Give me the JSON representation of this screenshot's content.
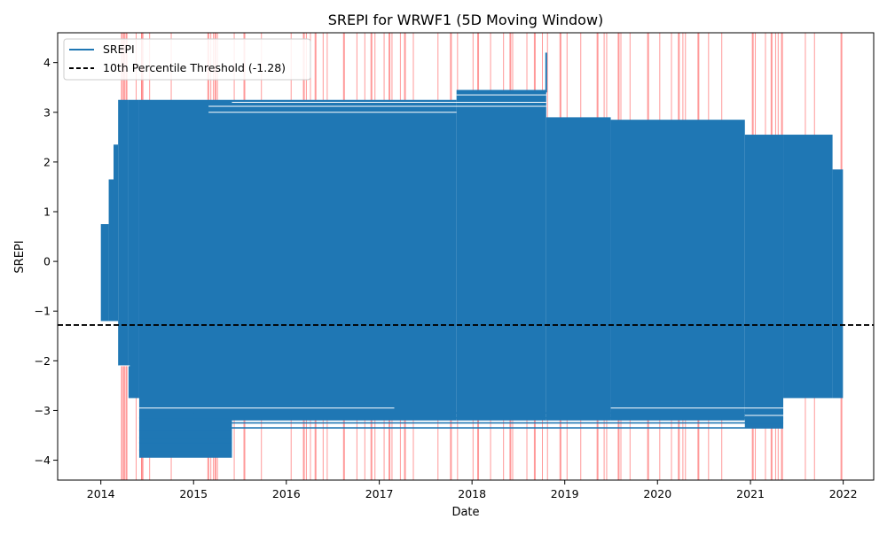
{
  "chart_data": {
    "type": "line",
    "title": "SREPI for WRWF1 (5D Moving Window)",
    "xlabel": "Date",
    "ylabel": "SREPI",
    "xlim": [
      "2013-07-15",
      "2022-05-01"
    ],
    "ylim": [
      -4.4,
      4.6
    ],
    "x_ticks": [
      "2014",
      "2015",
      "2016",
      "2017",
      "2018",
      "2019",
      "2020",
      "2021",
      "2022"
    ],
    "y_ticks": [
      "−4",
      "−3",
      "−2",
      "−1",
      "0",
      "1",
      "2",
      "3",
      "4"
    ],
    "legend": {
      "placement": "upper-left",
      "entries": [
        "SREPI",
        "10th Percentile Threshold (-1.28)"
      ]
    },
    "series": [
      {
        "name": "SREPI",
        "color": "#1f77b4",
        "envelope_approx": [
          {
            "x_start": "2014-01-01",
            "x_end": "2014-02-01",
            "y_min": -1.2,
            "y_max": 0.75
          },
          {
            "x_start": "2014-02-01",
            "x_end": "2014-02-20",
            "y_min": -1.2,
            "y_max": 1.65
          },
          {
            "x_start": "2014-02-20",
            "x_end": "2014-03-10",
            "y_min": -1.2,
            "y_max": 2.35
          },
          {
            "x_start": "2014-03-10",
            "x_end": "2014-04-20",
            "y_min": -2.1,
            "y_max": 3.25
          },
          {
            "x_start": "2014-04-20",
            "x_end": "2014-06-01",
            "y_min": -2.75,
            "y_max": 3.25
          },
          {
            "x_start": "2014-06-01",
            "x_end": "2015-06-01",
            "y_min": -3.95,
            "y_max": 3.25
          },
          {
            "x_start": "2015-06-01",
            "x_end": "2017-11-01",
            "y_min": -3.2,
            "y_max": 3.25
          },
          {
            "x_start": "2017-11-01",
            "x_end": "2018-10-20",
            "y_min": -3.2,
            "y_max": 3.45
          },
          {
            "x_start": "2018-10-20",
            "x_end": "2019-07-01",
            "y_min": -3.2,
            "y_max": 2.9
          },
          {
            "x_start": "2019-07-01",
            "x_end": "2020-12-10",
            "y_min": -3.2,
            "y_max": 2.85
          },
          {
            "x_start": "2020-12-10",
            "x_end": "2021-05-10",
            "y_min": -3.35,
            "y_max": 2.55
          },
          {
            "x_start": "2021-05-10",
            "x_end": "2021-11-20",
            "y_min": -2.75,
            "y_max": 2.55
          },
          {
            "x_start": "2021-11-20",
            "x_end": "2021-12-31",
            "y_min": -2.75,
            "y_max": 1.85
          }
        ],
        "peak": {
          "x": "2018-10-20",
          "y": 4.2
        }
      }
    ],
    "threshold": {
      "name": "10th Percentile Threshold (-1.28)",
      "value": -1.28,
      "color": "#000000",
      "style": "dashed"
    },
    "drought_event_lines": {
      "color": "#ff0000",
      "dates": [
        "2014-03-25",
        "2014-04-01",
        "2014-04-05",
        "2014-04-12",
        "2014-05-20",
        "2014-06-10",
        "2014-06-14",
        "2014-07-12",
        "2014-10-05",
        "2015-02-28",
        "2015-03-10",
        "2015-03-20",
        "2015-03-28",
        "2015-04-05",
        "2015-06-10",
        "2015-07-20",
        "2015-09-25",
        "2016-01-20",
        "2016-03-10",
        "2016-03-20",
        "2016-04-05",
        "2016-04-25",
        "2016-05-25",
        "2016-06-10",
        "2016-08-15",
        "2016-10-05",
        "2016-11-05",
        "2016-12-01",
        "2016-12-15",
        "2017-01-20",
        "2017-02-10",
        "2017-02-20",
        "2017-03-25",
        "2017-04-12",
        "2017-05-15",
        "2017-08-20",
        "2017-10-10",
        "2017-11-05",
        "2018-01-05",
        "2018-01-25",
        "2018-03-15",
        "2018-05-05",
        "2018-06-01",
        "2018-06-10",
        "2018-08-05",
        "2018-09-05",
        "2018-10-05",
        "2018-10-25",
        "2018-12-15",
        "2019-01-10",
        "2019-03-05",
        "2019-05-10",
        "2019-06-05",
        "2019-06-15",
        "2019-08-01",
        "2019-08-10",
        "2019-09-15",
        "2019-11-25",
        "2020-01-10",
        "2020-02-25",
        "2020-03-25",
        "2020-04-10",
        "2020-04-20",
        "2020-06-10",
        "2020-07-20",
        "2020-09-10",
        "2021-01-10",
        "2021-01-20",
        "2021-03-01",
        "2021-03-25",
        "2021-04-10",
        "2021-04-20",
        "2021-05-05",
        "2021-08-05",
        "2021-09-10",
        "2021-12-25"
      ]
    }
  }
}
